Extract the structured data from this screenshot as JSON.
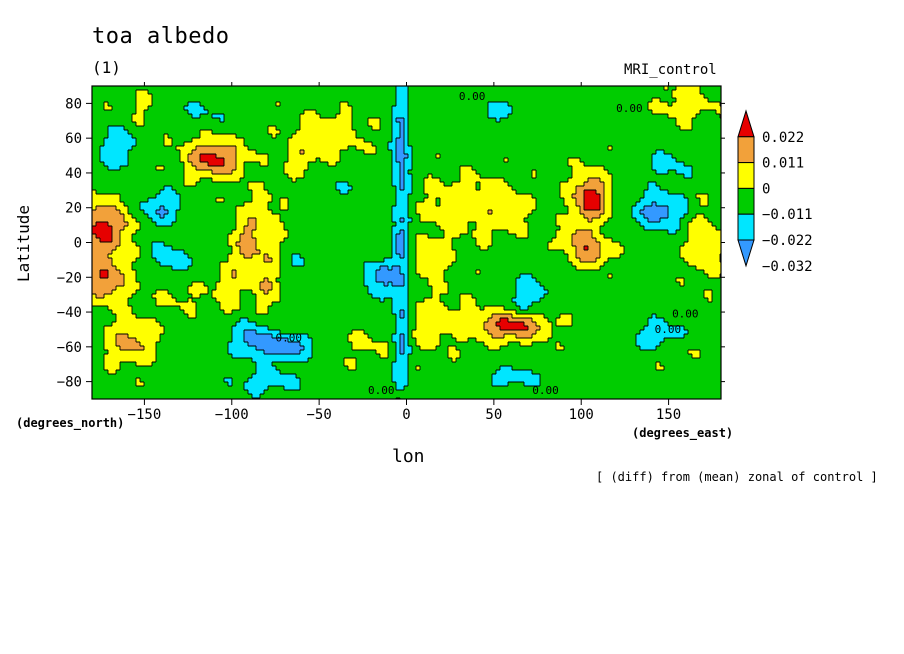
{
  "title": "toa albedo",
  "subtitle": "(1)",
  "model_label": "MRI_control",
  "note": "[ (diff) from (mean) zonal of control ]",
  "chart_data": {
    "type": "heatmap",
    "xlabel": "lon",
    "ylabel": "Latitude",
    "x_unit": "(degrees_east)",
    "y_unit": "(degrees_north)",
    "xlim": [
      -180,
      180
    ],
    "ylim": [
      -90,
      90
    ],
    "x_ticks": [
      -150,
      -100,
      -50,
      0,
      50,
      100,
      150
    ],
    "y_ticks": [
      -80,
      -60,
      -40,
      -20,
      0,
      20,
      40,
      60,
      80
    ],
    "colorbar": {
      "levels": [
        "0.022",
        "0.011",
        "0",
        "-0.011",
        "-0.022",
        "-0.032"
      ],
      "colors": [
        "#e60000",
        "#f2a13a",
        "#ffff00",
        "#00cc00",
        "#00e6ff",
        "#3399ff"
      ]
    },
    "contour_labels": [
      {
        "text": "0.00",
        "x": 30,
        "y": 82
      },
      {
        "text": "0.00",
        "x": 120,
        "y": 75
      },
      {
        "text": "0.00",
        "x": -75,
        "y": -57
      },
      {
        "text": "0.00",
        "x": -22,
        "y": -87
      },
      {
        "text": "0.00",
        "x": 72,
        "y": -87
      },
      {
        "text": "0.00",
        "x": 152,
        "y": -43
      },
      {
        "text": "0.00",
        "x": 142,
        "y": -52
      }
    ]
  }
}
